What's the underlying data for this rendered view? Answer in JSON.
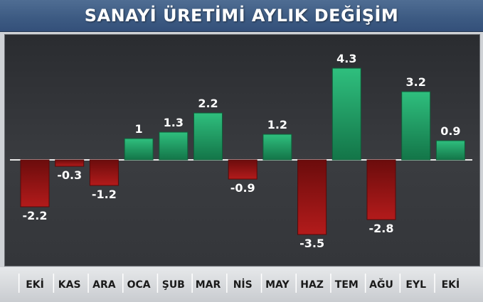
{
  "chart_data": {
    "type": "bar",
    "title": "SANAYİ ÜRETİMİ AYLIK DEĞİŞİM",
    "categories": [
      "EKİ",
      "KAS",
      "ARA",
      "OCA",
      "ŞUB",
      "MAR",
      "NİS",
      "MAY",
      "HAZ",
      "TEM",
      "AĞU",
      "EYL",
      "EKİ"
    ],
    "values": [
      -2.2,
      -0.3,
      -1.2,
      1,
      1.3,
      2.2,
      -0.9,
      1.2,
      -3.5,
      4.3,
      -2.8,
      3.2,
      0.9
    ],
    "value_labels": [
      "-2.2",
      "-0.3",
      "-1.2",
      "1",
      "1.3",
      "2.2",
      "-0.9",
      "1.2",
      "-3.5",
      "4.3",
      "-2.8",
      "3.2",
      "0.9"
    ],
    "ylim": [
      -3.5,
      4.3
    ],
    "grid": false,
    "colors": {
      "positive": "#1f9a62",
      "negative": "#8e1414"
    }
  }
}
